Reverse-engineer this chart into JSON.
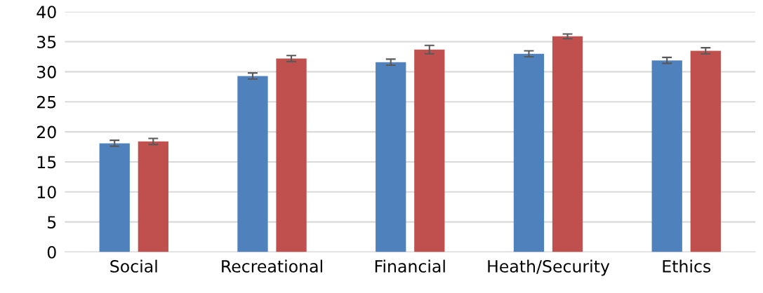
{
  "chart_data": {
    "type": "bar",
    "categories": [
      "Social",
      "Recreational",
      "Financial",
      "Heath/Security",
      "Ethics"
    ],
    "series": [
      {
        "color": "#4f81bd",
        "values": [
          18.1,
          29.3,
          31.6,
          33.0,
          31.9
        ],
        "errors": [
          0.5,
          0.5,
          0.5,
          0.5,
          0.5
        ]
      },
      {
        "color": "#c0504d",
        "values": [
          18.4,
          32.2,
          33.7,
          35.9,
          33.5
        ],
        "errors": [
          0.5,
          0.5,
          0.7,
          0.4,
          0.5
        ]
      }
    ],
    "ylim": [
      0,
      40
    ],
    "yticks": [
      0,
      5,
      10,
      15,
      20,
      25,
      30,
      35,
      40
    ],
    "grid": "y",
    "legend": false
  }
}
